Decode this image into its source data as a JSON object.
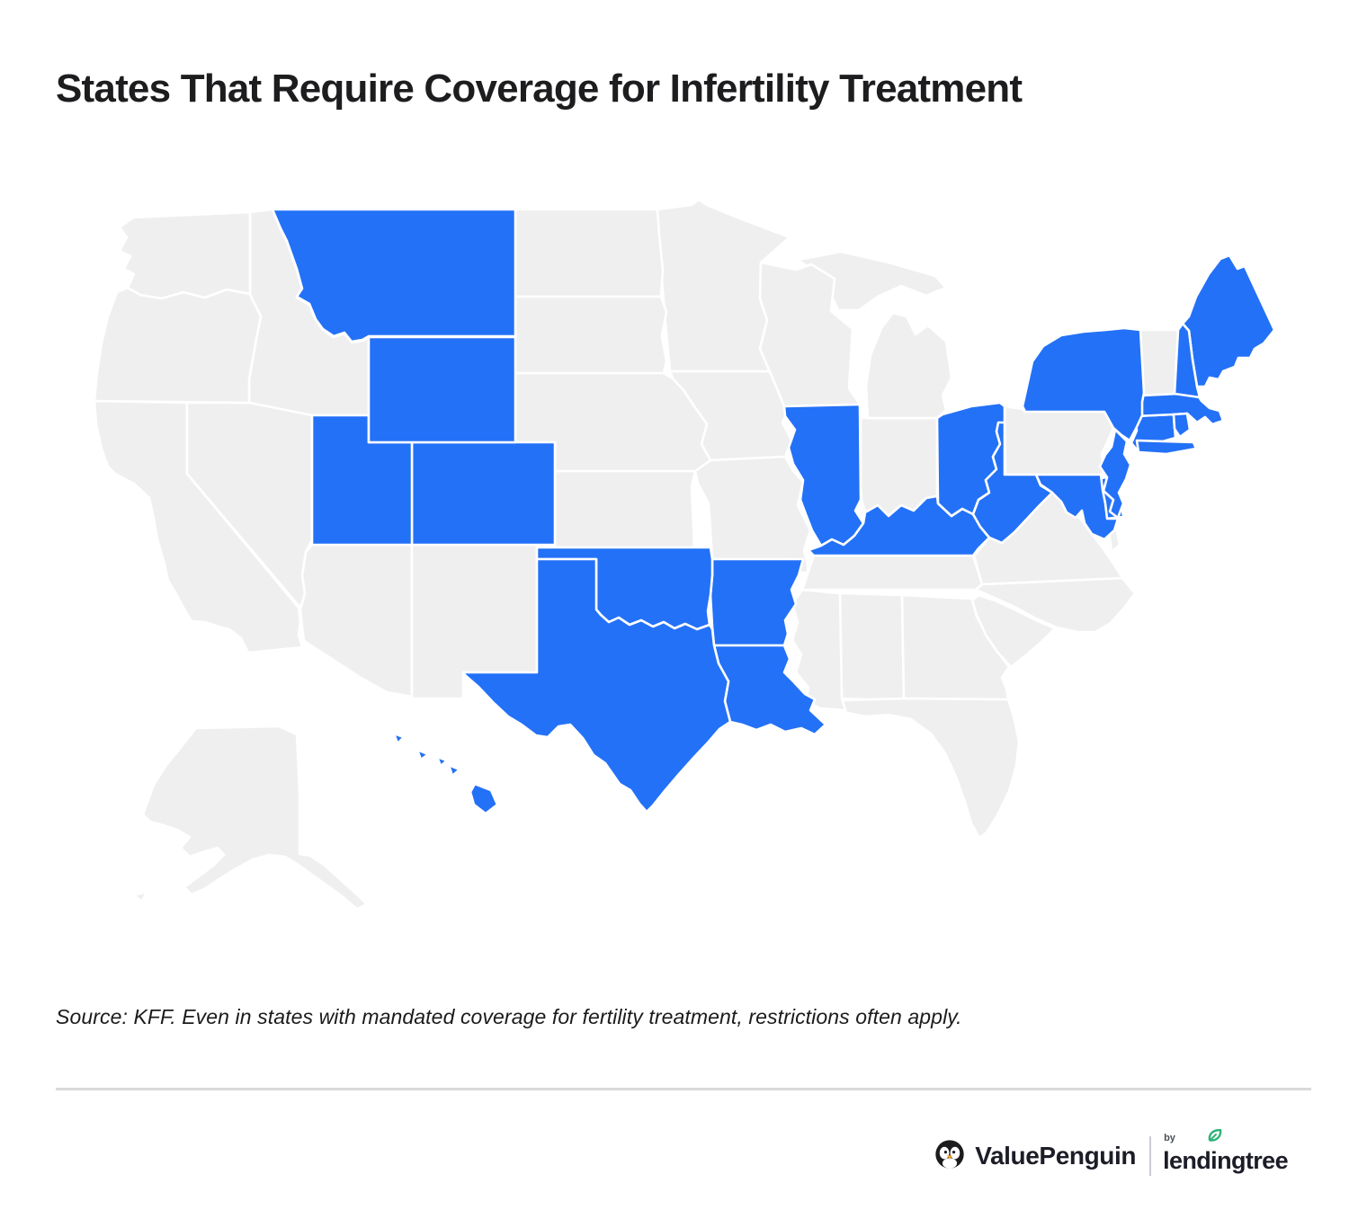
{
  "title": "States That Require Coverage for Infertility Treatment",
  "source_note": "Source: KFF. Even in states with mandated coverage for fertility treatment, restrictions often apply.",
  "legend": {
    "covered_color": "#2371F7",
    "not_covered_color": "#EFEFEF",
    "border_color": "#FFFFFF"
  },
  "footer": {
    "brand": "ValuePenguin",
    "by_label": "by",
    "partner": "lendingtree",
    "leaf_color": "#2EB279"
  },
  "map": {
    "states": [
      {
        "abbr": "AL",
        "name": "Alabama",
        "covered": false
      },
      {
        "abbr": "AK",
        "name": "Alaska",
        "covered": false
      },
      {
        "abbr": "AZ",
        "name": "Arizona",
        "covered": false
      },
      {
        "abbr": "AR",
        "name": "Arkansas",
        "covered": true
      },
      {
        "abbr": "CA",
        "name": "California",
        "covered": false
      },
      {
        "abbr": "CO",
        "name": "Colorado",
        "covered": true
      },
      {
        "abbr": "CT",
        "name": "Connecticut",
        "covered": true
      },
      {
        "abbr": "DE",
        "name": "Delaware",
        "covered": true
      },
      {
        "abbr": "FL",
        "name": "Florida",
        "covered": false
      },
      {
        "abbr": "GA",
        "name": "Georgia",
        "covered": false
      },
      {
        "abbr": "HI",
        "name": "Hawaii",
        "covered": true
      },
      {
        "abbr": "ID",
        "name": "Idaho",
        "covered": false
      },
      {
        "abbr": "IL",
        "name": "Illinois",
        "covered": true
      },
      {
        "abbr": "IN",
        "name": "Indiana",
        "covered": false
      },
      {
        "abbr": "IA",
        "name": "Iowa",
        "covered": false
      },
      {
        "abbr": "KS",
        "name": "Kansas",
        "covered": false
      },
      {
        "abbr": "KY",
        "name": "Kentucky",
        "covered": true
      },
      {
        "abbr": "LA",
        "name": "Louisiana",
        "covered": true
      },
      {
        "abbr": "ME",
        "name": "Maine",
        "covered": true
      },
      {
        "abbr": "MD",
        "name": "Maryland",
        "covered": true
      },
      {
        "abbr": "MA",
        "name": "Massachusetts",
        "covered": true
      },
      {
        "abbr": "MI",
        "name": "Michigan",
        "covered": false
      },
      {
        "abbr": "MN",
        "name": "Minnesota",
        "covered": false
      },
      {
        "abbr": "MS",
        "name": "Mississippi",
        "covered": false
      },
      {
        "abbr": "MO",
        "name": "Missouri",
        "covered": false
      },
      {
        "abbr": "MT",
        "name": "Montana",
        "covered": true
      },
      {
        "abbr": "NE",
        "name": "Nebraska",
        "covered": false
      },
      {
        "abbr": "NV",
        "name": "Nevada",
        "covered": false
      },
      {
        "abbr": "NH",
        "name": "New Hampshire",
        "covered": true
      },
      {
        "abbr": "NJ",
        "name": "New Jersey",
        "covered": true
      },
      {
        "abbr": "NM",
        "name": "New Mexico",
        "covered": false
      },
      {
        "abbr": "NY",
        "name": "New York",
        "covered": true
      },
      {
        "abbr": "NC",
        "name": "North Carolina",
        "covered": false
      },
      {
        "abbr": "ND",
        "name": "North Dakota",
        "covered": false
      },
      {
        "abbr": "OH",
        "name": "Ohio",
        "covered": true
      },
      {
        "abbr": "OK",
        "name": "Oklahoma",
        "covered": true
      },
      {
        "abbr": "OR",
        "name": "Oregon",
        "covered": false
      },
      {
        "abbr": "PA",
        "name": "Pennsylvania",
        "covered": false
      },
      {
        "abbr": "RI",
        "name": "Rhode Island",
        "covered": true
      },
      {
        "abbr": "SC",
        "name": "South Carolina",
        "covered": false
      },
      {
        "abbr": "SD",
        "name": "South Dakota",
        "covered": false
      },
      {
        "abbr": "TN",
        "name": "Tennessee",
        "covered": false
      },
      {
        "abbr": "TX",
        "name": "Texas",
        "covered": true
      },
      {
        "abbr": "UT",
        "name": "Utah",
        "covered": true
      },
      {
        "abbr": "VT",
        "name": "Vermont",
        "covered": false
      },
      {
        "abbr": "VA",
        "name": "Virginia",
        "covered": false
      },
      {
        "abbr": "WA",
        "name": "Washington",
        "covered": false
      },
      {
        "abbr": "WV",
        "name": "West Virginia",
        "covered": true
      },
      {
        "abbr": "WI",
        "name": "Wisconsin",
        "covered": false
      },
      {
        "abbr": "WY",
        "name": "Wyoming",
        "covered": true
      }
    ]
  }
}
